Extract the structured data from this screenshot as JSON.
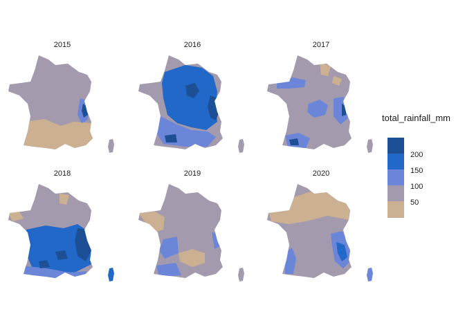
{
  "chart_data": {
    "type": "heatmap",
    "facets": [
      "2015",
      "2016",
      "2017",
      "2018",
      "2019",
      "2020"
    ],
    "legend": {
      "title": "total_rainfall_mm",
      "breaks": [
        200,
        150,
        100,
        50
      ],
      "position": "right"
    },
    "colors": {
      "r200": "#1d4f94",
      "r150": "#2268c8",
      "r125": "#6b85d8",
      "r100": "#a49aae",
      "r50": "#cbb092",
      "background": "#ffffff"
    }
  }
}
